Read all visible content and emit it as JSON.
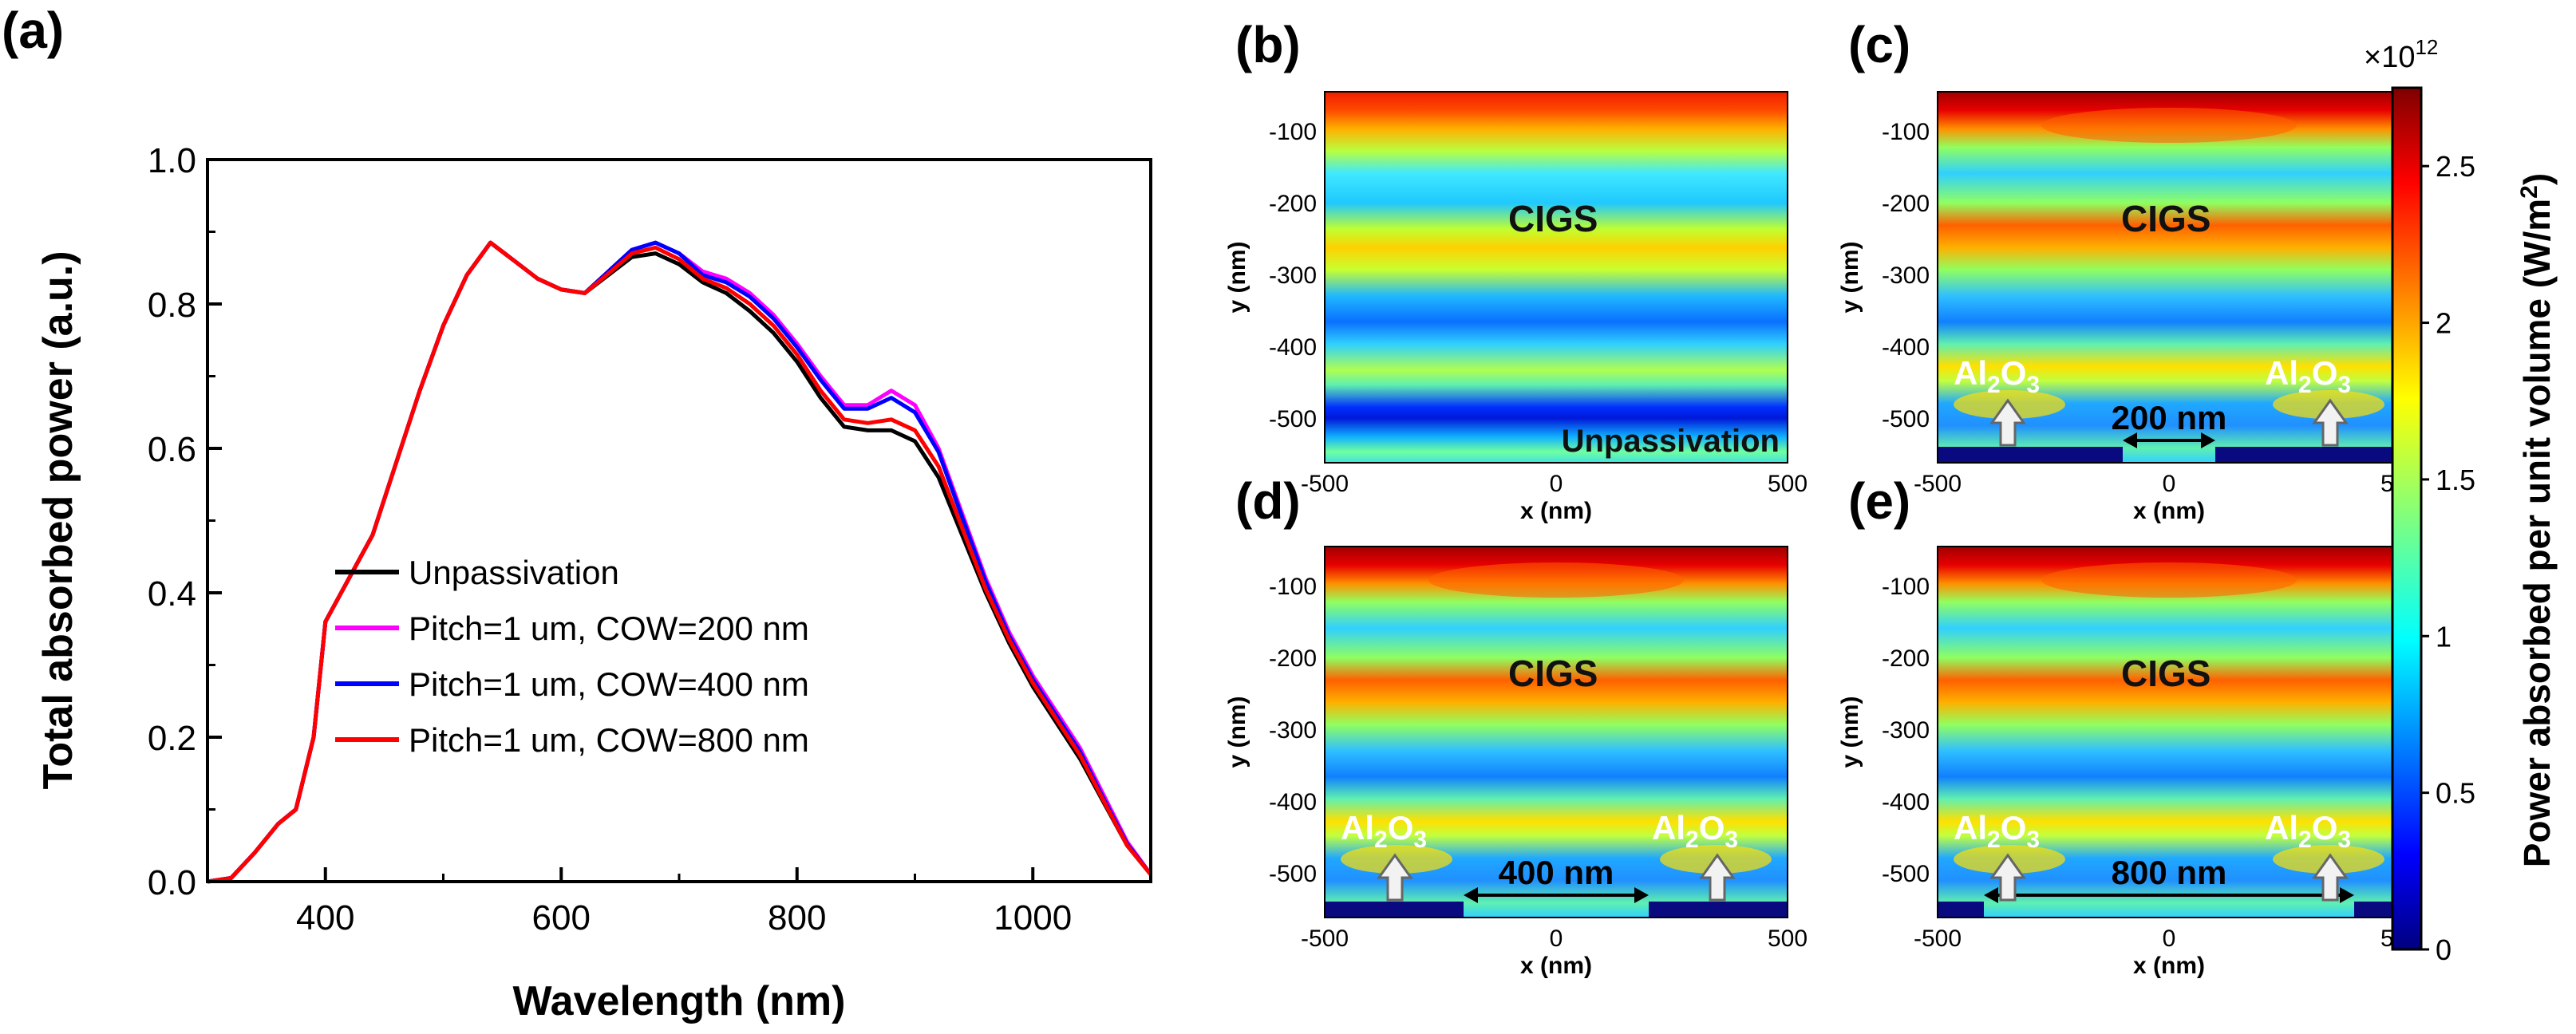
{
  "chart_data": [
    {
      "panel": "(a)",
      "type": "line",
      "xlabel": "Wavelength (nm)",
      "ylabel": "Total absorbed power (a.u.)",
      "xlim": [
        300,
        1100
      ],
      "ylim": [
        0.0,
        1.0
      ],
      "xticks": [
        "400",
        "600",
        "800",
        "1000"
      ],
      "yticks": [
        "0.0",
        "0.2",
        "0.4",
        "0.6",
        "0.8",
        "1.0"
      ],
      "legend_position": "lower-left",
      "series": [
        {
          "name": "Unpassivation",
          "color": "#000000",
          "x": [
            300,
            320,
            340,
            360,
            375,
            390,
            400,
            420,
            440,
            460,
            480,
            500,
            520,
            540,
            560,
            580,
            600,
            620,
            640,
            660,
            680,
            700,
            720,
            740,
            760,
            780,
            800,
            820,
            840,
            860,
            880,
            900,
            920,
            940,
            960,
            980,
            1000,
            1020,
            1040,
            1060,
            1080,
            1100
          ],
          "y": [
            0.0,
            0.005,
            0.04,
            0.08,
            0.1,
            0.2,
            0.36,
            0.42,
            0.48,
            0.58,
            0.68,
            0.77,
            0.84,
            0.885,
            0.86,
            0.835,
            0.82,
            0.815,
            0.84,
            0.865,
            0.87,
            0.855,
            0.83,
            0.815,
            0.79,
            0.76,
            0.72,
            0.67,
            0.63,
            0.625,
            0.625,
            0.61,
            0.56,
            0.48,
            0.4,
            0.33,
            0.27,
            0.22,
            0.17,
            0.11,
            0.05,
            0.01
          ]
        },
        {
          "name": "Pitch=1 um, COW=200 nm",
          "color": "#ff00ff",
          "x": [
            300,
            320,
            340,
            360,
            375,
            390,
            400,
            420,
            440,
            460,
            480,
            500,
            520,
            540,
            560,
            580,
            600,
            620,
            640,
            660,
            680,
            700,
            720,
            740,
            760,
            780,
            800,
            820,
            840,
            860,
            880,
            900,
            920,
            940,
            960,
            980,
            1000,
            1020,
            1040,
            1060,
            1080,
            1100
          ],
          "y": [
            0.0,
            0.005,
            0.04,
            0.08,
            0.1,
            0.2,
            0.36,
            0.42,
            0.48,
            0.58,
            0.68,
            0.77,
            0.84,
            0.885,
            0.86,
            0.835,
            0.82,
            0.815,
            0.845,
            0.875,
            0.885,
            0.87,
            0.845,
            0.835,
            0.815,
            0.785,
            0.745,
            0.7,
            0.66,
            0.66,
            0.68,
            0.66,
            0.6,
            0.51,
            0.42,
            0.345,
            0.285,
            0.235,
            0.185,
            0.12,
            0.055,
            0.01
          ]
        },
        {
          "name": "Pitch=1 um, COW=400 nm",
          "color": "#0000ff",
          "x": [
            300,
            320,
            340,
            360,
            375,
            390,
            400,
            420,
            440,
            460,
            480,
            500,
            520,
            540,
            560,
            580,
            600,
            620,
            640,
            660,
            680,
            700,
            720,
            740,
            760,
            780,
            800,
            820,
            840,
            860,
            880,
            900,
            920,
            940,
            960,
            980,
            1000,
            1020,
            1040,
            1060,
            1080,
            1100
          ],
          "y": [
            0.0,
            0.005,
            0.04,
            0.08,
            0.1,
            0.2,
            0.36,
            0.42,
            0.48,
            0.58,
            0.68,
            0.77,
            0.84,
            0.885,
            0.86,
            0.835,
            0.82,
            0.815,
            0.845,
            0.875,
            0.885,
            0.87,
            0.84,
            0.83,
            0.81,
            0.78,
            0.74,
            0.695,
            0.655,
            0.655,
            0.67,
            0.65,
            0.595,
            0.505,
            0.415,
            0.34,
            0.28,
            0.23,
            0.18,
            0.115,
            0.052,
            0.01
          ]
        },
        {
          "name": "Pitch=1 um, COW=800 nm",
          "color": "#ff0000",
          "x": [
            300,
            320,
            340,
            360,
            375,
            390,
            400,
            420,
            440,
            460,
            480,
            500,
            520,
            540,
            560,
            580,
            600,
            620,
            640,
            660,
            680,
            700,
            720,
            740,
            760,
            780,
            800,
            820,
            840,
            860,
            880,
            900,
            920,
            940,
            960,
            980,
            1000,
            1020,
            1040,
            1060,
            1080,
            1100
          ],
          "y": [
            0.0,
            0.005,
            0.04,
            0.08,
            0.1,
            0.2,
            0.36,
            0.42,
            0.48,
            0.58,
            0.68,
            0.77,
            0.84,
            0.885,
            0.86,
            0.835,
            0.82,
            0.815,
            0.842,
            0.87,
            0.878,
            0.862,
            0.835,
            0.822,
            0.8,
            0.77,
            0.73,
            0.68,
            0.64,
            0.635,
            0.64,
            0.625,
            0.575,
            0.49,
            0.405,
            0.335,
            0.275,
            0.225,
            0.175,
            0.112,
            0.05,
            0.01
          ]
        }
      ]
    },
    {
      "type": "heatmap",
      "description": "Power absorption maps",
      "xlabel": "x (nm)",
      "ylabel": "y (nm)",
      "xticks": [
        "-500",
        "0",
        "500"
      ],
      "yticks": [
        "-100",
        "-200",
        "-300",
        "-400",
        "-500"
      ],
      "panels": [
        {
          "label": "(b)",
          "material_label": "CIGS",
          "annotation": "Unpassivation"
        },
        {
          "label": "(c)",
          "material_label": "CIGS",
          "oxide_label": "Al",
          "oxide_sub": "2",
          "oxide_tail": "O",
          "oxide_sub2": "3",
          "gap_label": "200 nm",
          "cow_nm": 200
        },
        {
          "label": "(d)",
          "material_label": "CIGS",
          "oxide_label": "Al",
          "oxide_sub": "2",
          "oxide_tail": "O",
          "oxide_sub2": "3",
          "gap_label": "400 nm",
          "cow_nm": 400
        },
        {
          "label": "(e)",
          "material_label": "CIGS",
          "oxide_label": "Al",
          "oxide_sub": "2",
          "oxide_tail": "O",
          "oxide_sub2": "3",
          "gap_label": "800 nm",
          "cow_nm": 800
        }
      ],
      "colorbar": {
        "label": "Power absorbed per unit volume (W/m",
        "label_sup": "2",
        "label_tail": ")",
        "exponent_base": "×10",
        "exponent": "12",
        "ticks": [
          "0",
          "0.5",
          "1",
          "1.5",
          "2",
          "2.5"
        ],
        "range": [
          0,
          2.75
        ]
      }
    }
  ]
}
